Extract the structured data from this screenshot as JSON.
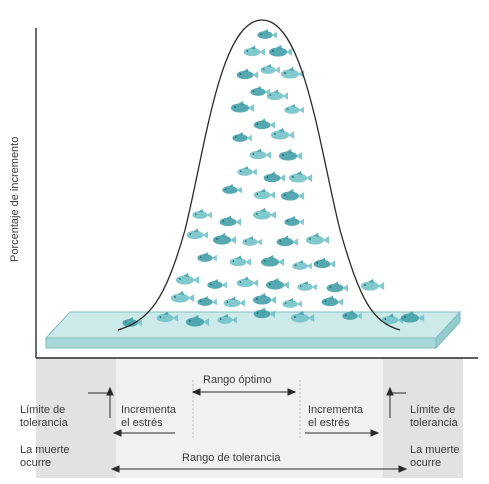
{
  "y_axis_label": "Porcentaje de incremento",
  "optimum_range_label": "Rango óptimo",
  "tolerance_range_label": "Rango de tolerancia",
  "left": {
    "tolerance_limit": [
      "Límite de",
      "tolerancia"
    ],
    "stress": [
      "Incrementa",
      "el estrés"
    ],
    "death": [
      "La muerte",
      "ocurre"
    ]
  },
  "right": {
    "tolerance_limit": [
      "Límite de",
      "tolerancia"
    ],
    "stress": [
      "Incrementa",
      "el estrés"
    ],
    "death": [
      "La muerte",
      "ocurre"
    ]
  },
  "colors": {
    "curve": "#2a2a2a",
    "fish": "#6cc0c5",
    "fish_dark": "#3a9aa3",
    "platform": "#bfe4e4",
    "platform_edge": "#7fbcc1",
    "bands": "#dcdcdc",
    "optimum_band": "#efefef"
  }
}
